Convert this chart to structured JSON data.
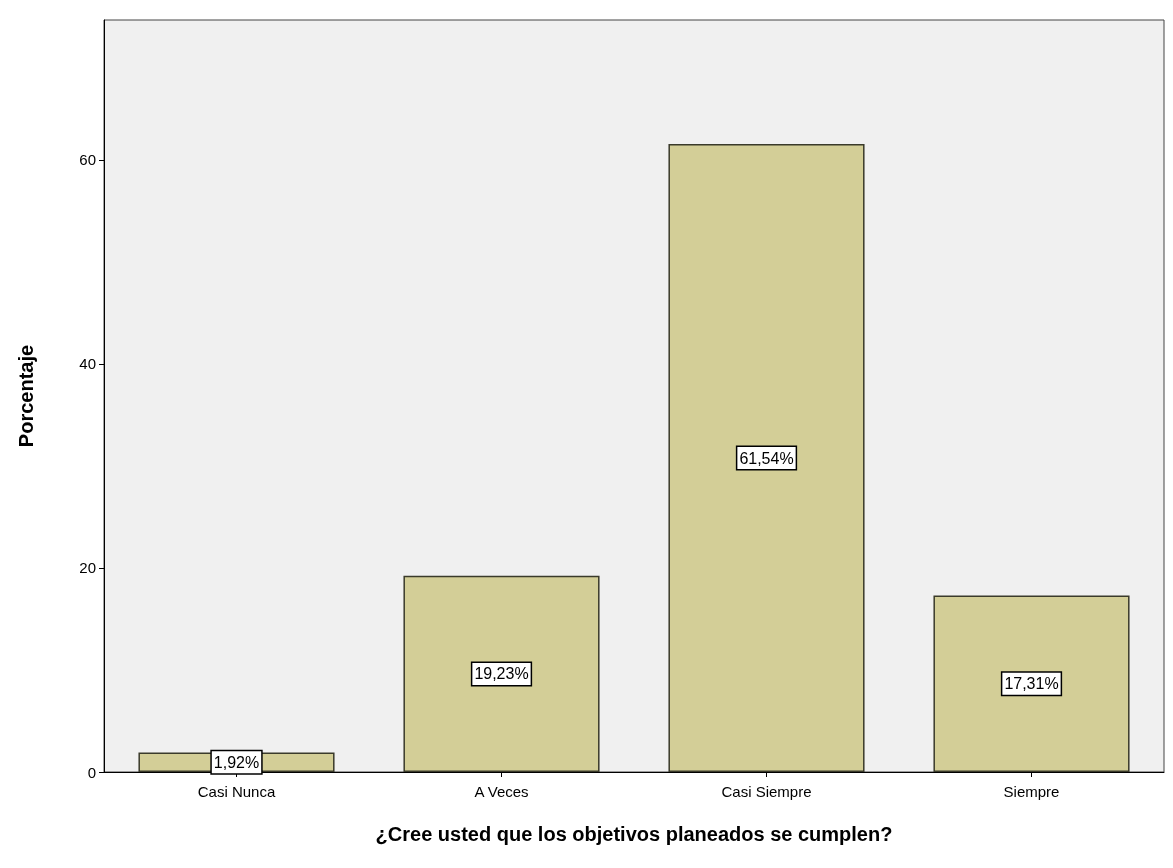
{
  "chart_data": {
    "type": "bar",
    "xlabel": "¿Cree usted que los objetivos planeados se cumplen?",
    "ylabel": "Porcentaje",
    "categories": [
      "Casi Nunca",
      "A Veces",
      "Casi Siempre",
      "Siempre"
    ],
    "values": [
      1.92,
      19.23,
      61.54,
      17.31
    ],
    "value_labels": [
      "1,92%",
      "19,23%",
      "61,54%",
      "17,31%"
    ],
    "color": "#d3ce97",
    "ylim": [
      0,
      73.7
    ],
    "yticks": [
      0,
      20,
      40,
      60
    ],
    "grid": false
  }
}
